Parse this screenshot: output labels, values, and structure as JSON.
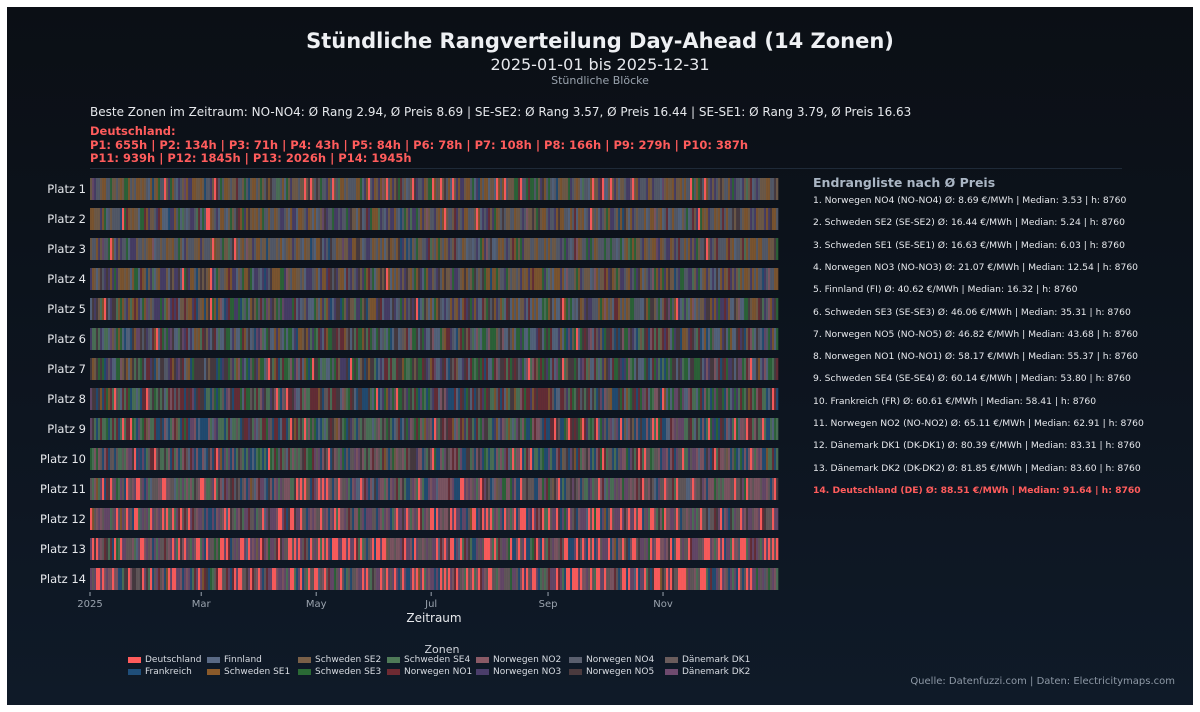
{
  "title": "Stündliche Rangverteilung Day-Ahead (14 Zonen)",
  "subtitle": "2025-01-01 bis 2025-12-31",
  "subsubtitle": "Stündliche Blöcke",
  "best_line": "Beste Zonen im Zeitraum: NO-NO4: Ø Rang 2.94, Ø Preis 8.69 | SE-SE2: Ø Rang 3.57, Ø Preis 16.44 | SE-SE1: Ø Rang 3.79, Ø Preis 16.63",
  "germany": {
    "label": "Deutschland:",
    "line1": "P1: 655h | P2: 134h | P3: 71h | P4: 43h | P5: 84h | P6: 78h | P7: 108h | P8: 166h | P9: 279h | P10: 387h",
    "line2": "P11: 939h | P12: 1845h | P13: 2026h | P14: 1945h"
  },
  "ranklist": {
    "title": "Endrangliste nach Ø Preis",
    "items": [
      "1. Norwegen NO4 (NO-NO4)  Ø: 8.69 €/MWh | Median: 3.53 | h: 8760",
      "2. Schweden SE2 (SE-SE2)  Ø: 16.44 €/MWh | Median: 5.24 | h: 8760",
      "3. Schweden SE1 (SE-SE1)  Ø: 16.63 €/MWh | Median: 6.03 | h: 8760",
      "4. Norwegen NO3 (NO-NO3)  Ø: 21.07 €/MWh | Median: 12.54 | h: 8760",
      "5. Finnland (FI)  Ø: 40.62 €/MWh | Median: 16.32 | h: 8760",
      "6. Schweden SE3 (SE-SE3)  Ø: 46.06 €/MWh | Median: 35.31 | h: 8760",
      "7. Norwegen NO5 (NO-NO5)  Ø: 46.82 €/MWh | Median: 43.68 | h: 8760",
      "8. Norwegen NO1 (NO-NO1)  Ø: 58.17 €/MWh | Median: 55.37 | h: 8760",
      "9. Schweden SE4 (SE-SE4)  Ø: 60.14 €/MWh | Median: 53.80 | h: 8760",
      "10. Frankreich (FR)  Ø: 60.61 €/MWh | Median: 58.41 | h: 8760",
      "11. Norwegen NO2 (NO-NO2)  Ø: 65.11 €/MWh | Median: 62.91 | h: 8760",
      "12. Dänemark DK1 (DK-DK1)  Ø: 80.39 €/MWh | Median: 83.31 | h: 8760",
      "13. Dänemark DK2 (DK-DK2)  Ø: 81.85 €/MWh | Median: 83.60 | h: 8760",
      "14. Deutschland (DE)  Ø: 88.51 €/MWh | Median: 91.64 | h: 8760"
    ]
  },
  "legend": {
    "title": "Zonen",
    "items": [
      {
        "label": "Deutschland",
        "color": "#ff5c5c"
      },
      {
        "label": "Frankreich",
        "color": "#1f4e79"
      },
      {
        "label": "Finnland",
        "color": "#5a6a85"
      },
      {
        "label": "Schweden SE1",
        "color": "#8a5a2a"
      },
      {
        "label": "Schweden SE2",
        "color": "#7a6048"
      },
      {
        "label": "Schweden SE3",
        "color": "#2a6a35"
      },
      {
        "label": "Schweden SE4",
        "color": "#4f7a58"
      },
      {
        "label": "Norwegen NO1",
        "color": "#6e2a32"
      },
      {
        "label": "Norwegen NO2",
        "color": "#8a5a66"
      },
      {
        "label": "Norwegen NO3",
        "color": "#4a3d6a"
      },
      {
        "label": "Norwegen NO4",
        "color": "#5a5f6e"
      },
      {
        "label": "Norwegen NO5",
        "color": "#4a3a3e"
      },
      {
        "label": "Dänemark DK1",
        "color": "#6a5c5c"
      },
      {
        "label": "Dänemark DK2",
        "color": "#6e4a6e"
      }
    ]
  },
  "source": "Quelle: Datenfuzzi.com | Daten: Electricitymaps.com",
  "chart_data": {
    "type": "heatmap",
    "title": "Stündliche Rangverteilung Day-Ahead (14 Zonen)",
    "xlabel": "Zeitraum",
    "ylabel": "",
    "x_range": [
      "2025-01-01",
      "2025-12-31"
    ],
    "x_ticks": [
      "2025",
      "Mar",
      "May",
      "Jul",
      "Sep",
      "Nov"
    ],
    "rows": [
      "Platz 1",
      "Platz 2",
      "Platz 3",
      "Platz 4",
      "Platz 5",
      "Platz 6",
      "Platz 7",
      "Platz 8",
      "Platz 9",
      "Platz 10",
      "Platz 11",
      "Platz 12",
      "Platz 13",
      "Platz 14"
    ],
    "hours_total": 8760,
    "germany_hours_per_rank": [
      655,
      134,
      71,
      43,
      84,
      78,
      108,
      166,
      279,
      387,
      939,
      1845,
      2026,
      1945
    ],
    "zone_avg_price_eur_mwh": {
      "NO-NO4": 8.69,
      "SE-SE2": 16.44,
      "SE-SE1": 16.63,
      "NO-NO3": 21.07,
      "FI": 40.62,
      "SE-SE3": 46.06,
      "NO-NO5": 46.82,
      "NO-NO1": 58.17,
      "SE-SE4": 60.14,
      "FR": 60.61,
      "NO-NO2": 65.11,
      "DK-DK1": 80.39,
      "DK-DK2": 81.85,
      "DE": 88.51
    },
    "grid": false,
    "legend_position": "bottom"
  }
}
